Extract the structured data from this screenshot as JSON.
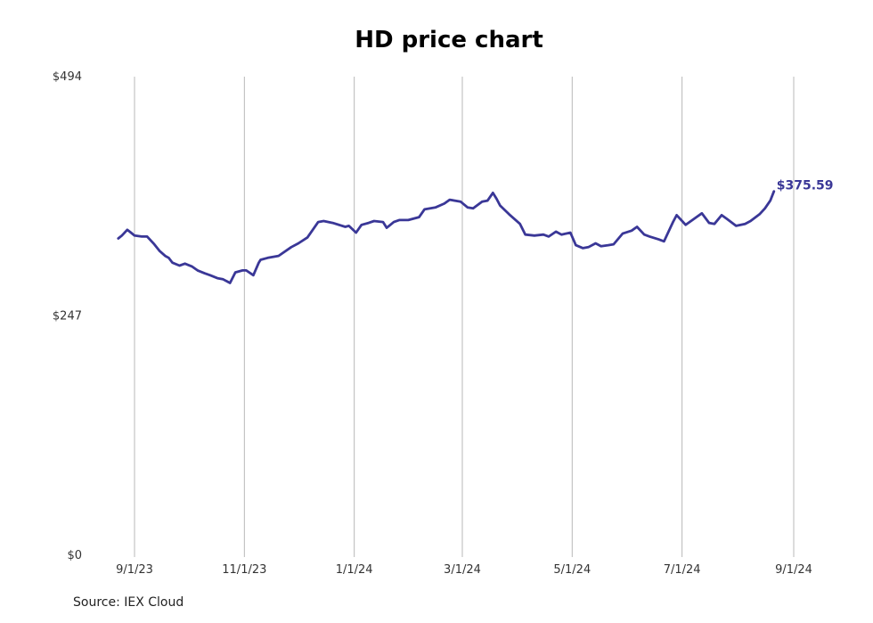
{
  "chart_data": {
    "type": "line",
    "title": "HD price chart",
    "source": "Source: IEX Cloud",
    "ylim": [
      0,
      494
    ],
    "y_ticks": [
      "$494",
      "$247",
      "$0"
    ],
    "y_tick_values": [
      494,
      247,
      0
    ],
    "x_ticks": [
      "9/1/23",
      "11/1/23",
      "1/1/24",
      "3/1/24",
      "5/1/24",
      "7/1/24",
      "9/1/24"
    ],
    "x_tick_dates": [
      "2023-09-01",
      "2023-11-01",
      "2024-01-01",
      "2024-03-01",
      "2024-05-01",
      "2024-07-01",
      "2024-09-01"
    ],
    "last_label": "$375.59",
    "colors": {
      "line": "#3a3797",
      "grid": "#b8b8b8",
      "label": "#3a3797"
    },
    "series": [
      {
        "x": [
          "2023-08-23",
          "2023-08-25",
          "2023-08-28",
          "2023-08-30",
          "2023-09-01",
          "2023-09-05",
          "2023-09-08",
          "2023-09-12",
          "2023-09-15",
          "2023-09-18",
          "2023-09-20",
          "2023-09-22",
          "2023-09-26",
          "2023-09-29",
          "2023-10-03",
          "2023-10-06",
          "2023-10-10",
          "2023-10-13",
          "2023-10-17",
          "2023-10-20",
          "2023-10-24",
          "2023-10-27",
          "2023-10-31",
          "2023-11-02",
          "2023-11-06",
          "2023-11-09",
          "2023-11-10",
          "2023-11-14",
          "2023-11-20",
          "2023-11-27",
          "2023-12-01",
          "2023-12-06",
          "2023-12-12",
          "2023-12-15",
          "2023-12-20",
          "2023-12-27",
          "2023-12-29",
          "2024-01-02",
          "2024-01-05",
          "2024-01-09",
          "2024-01-12",
          "2024-01-17",
          "2024-01-19",
          "2024-01-23",
          "2024-01-26",
          "2024-01-31",
          "2024-02-06",
          "2024-02-09",
          "2024-02-15",
          "2024-02-20",
          "2024-02-23",
          "2024-02-29",
          "2024-03-04",
          "2024-03-07",
          "2024-03-12",
          "2024-03-15",
          "2024-03-18",
          "2024-03-20",
          "2024-03-22",
          "2024-03-27",
          "2024-04-02",
          "2024-04-05",
          "2024-04-10",
          "2024-04-15",
          "2024-04-18",
          "2024-04-22",
          "2024-04-25",
          "2024-04-30",
          "2024-05-03",
          "2024-05-07",
          "2024-05-10",
          "2024-05-14",
          "2024-05-17",
          "2024-05-21",
          "2024-05-24",
          "2024-05-29",
          "2024-06-03",
          "2024-06-06",
          "2024-06-10",
          "2024-06-13",
          "2024-06-18",
          "2024-06-21",
          "2024-06-26",
          "2024-06-28",
          "2024-07-03",
          "2024-07-09",
          "2024-07-12",
          "2024-07-16",
          "2024-07-19",
          "2024-07-23",
          "2024-07-26",
          "2024-07-31",
          "2024-08-05",
          "2024-08-08",
          "2024-08-13",
          "2024-08-16",
          "2024-08-19",
          "2024-08-21"
        ],
        "values": [
          327,
          330,
          336,
          333,
          330,
          329,
          329,
          321,
          314,
          309,
          307,
          302,
          299,
          301,
          298,
          294,
          291,
          289,
          286,
          285,
          281,
          292,
          294,
          294,
          289,
          302,
          305,
          307,
          309,
          318,
          322,
          328,
          344,
          345,
          343,
          339,
          340,
          333,
          341,
          343,
          345,
          344,
          338,
          344,
          346,
          346,
          349,
          357,
          359,
          363,
          367,
          365,
          359,
          358,
          365,
          366,
          374,
          368,
          361,
          352,
          342,
          331,
          330,
          331,
          329,
          334,
          331,
          333,
          320,
          317,
          318,
          322,
          319,
          320,
          321,
          332,
          335,
          339,
          331,
          329,
          326,
          324,
          344,
          351,
          341,
          349,
          353,
          343,
          342,
          351,
          347,
          340,
          342,
          345,
          352,
          358,
          366,
          375.59
        ]
      }
    ]
  }
}
